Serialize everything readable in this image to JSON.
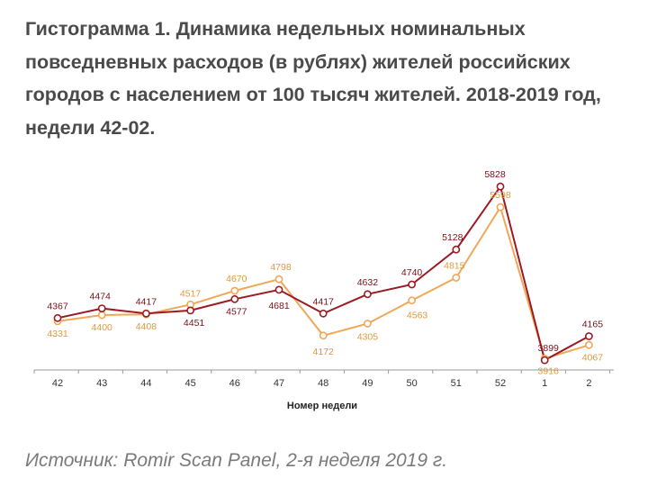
{
  "title": "Гистограмма 1. Динамика недельных номинальных повседневных расходов (в рублях) жителей российских городов с населением от 100 тысяч жителей. 2018-2019 год, недели 42-02.",
  "source": "Источник: Romir Scan Panel, 2-я неделя 2019 г.",
  "chart_data": {
    "type": "line",
    "title": "",
    "xlabel": "Номер недели",
    "ylabel": "",
    "categories": [
      "42",
      "43",
      "44",
      "45",
      "46",
      "47",
      "48",
      "49",
      "50",
      "51",
      "52",
      "1",
      "2"
    ],
    "ylim": [
      3800,
      5950
    ],
    "grid": false,
    "series": [
      {
        "name": "",
        "color": "#9b1b22",
        "values": [
          4367,
          4474,
          4417,
          4451,
          4577,
          4681,
          4417,
          4632,
          4740,
          5128,
          5828,
          3899,
          4165
        ]
      },
      {
        "name": "",
        "color": "#f0a858",
        "values": [
          4331,
          4400,
          4408,
          4517,
          4670,
          4798,
          4172,
          4305,
          4563,
          4815,
          5598,
          3916,
          4067
        ]
      }
    ]
  }
}
